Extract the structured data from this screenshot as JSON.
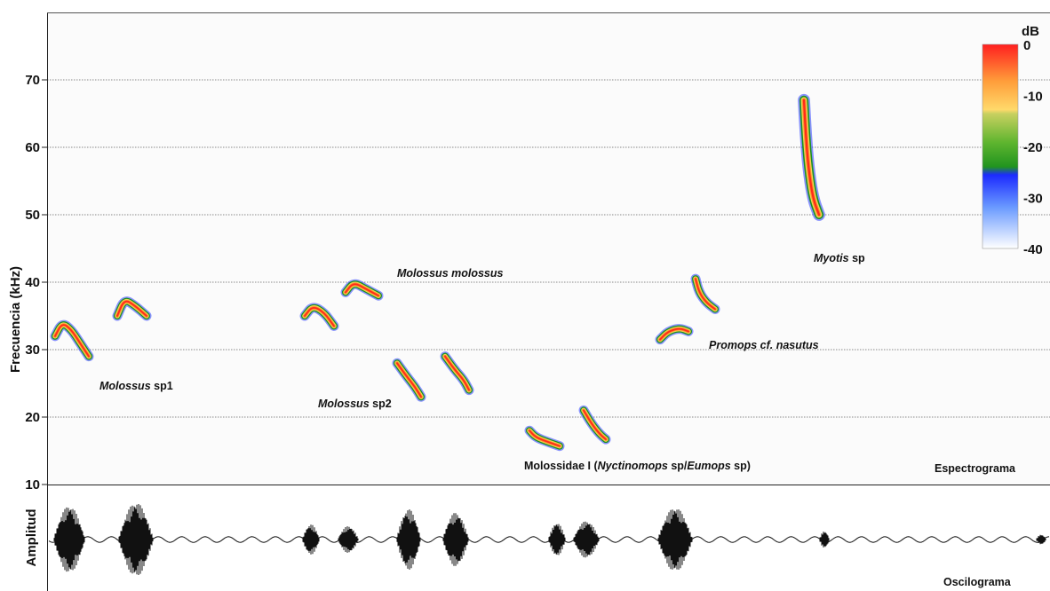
{
  "spectrogram": {
    "panel_label": "Espectrograma",
    "y_axis_title": "Frecuencia (kHz)",
    "y_ticks": [
      10,
      20,
      30,
      40,
      50,
      60,
      70
    ],
    "y_range": [
      10,
      80
    ],
    "gridlines_khz": [
      20,
      30,
      40,
      50,
      60,
      70
    ]
  },
  "oscillogram": {
    "panel_label": "Oscilograma",
    "y_axis_title": "Amplitud"
  },
  "colorbar": {
    "unit": "dB",
    "ticks": [
      "0",
      "-10",
      "-20",
      "-30",
      "-40"
    ],
    "colors": [
      "#ff1f1f",
      "#ff9d3a",
      "#ffd96a",
      "#93c72e",
      "#2aa52a",
      "#1c2bff",
      "#6b9bff",
      "#ffffff"
    ]
  },
  "labels": {
    "molossus_sp1": {
      "italic": "Molossus",
      "normal": " sp1"
    },
    "molossus_molossus": {
      "italic": "Molossus molossus"
    },
    "molossus_sp2": {
      "italic": "Molossus",
      "normal": " sp2"
    },
    "molossidae": {
      "p1": "Molossidae I (",
      "p2": "Nyctinomops",
      "p3": " sp/",
      "p4": "Eumops",
      "p5": " sp)"
    },
    "promops": {
      "italic": "Promops cf. nasutus"
    },
    "myotis": {
      "italic": "Myotis",
      "normal": " sp"
    }
  },
  "calls": [
    {
      "species": "Molossus sp1",
      "points_khz": [
        [
          62,
          32
        ],
        [
          70,
          34
        ],
        [
          80,
          33
        ],
        [
          90,
          31
        ],
        [
          100,
          29
        ]
      ]
    },
    {
      "species": "Molossus sp1",
      "points_khz": [
        [
          132,
          35
        ],
        [
          140,
          37.5
        ],
        [
          152,
          36.5
        ],
        [
          165,
          35
        ]
      ]
    },
    {
      "species": "Molossus sp2",
      "points_khz": [
        [
          343,
          35
        ],
        [
          352,
          36.5
        ],
        [
          365,
          35.5
        ],
        [
          376,
          33.5
        ]
      ]
    },
    {
      "species": "Molossus molossus",
      "points_khz": [
        [
          389,
          38.5
        ],
        [
          398,
          40
        ],
        [
          412,
          39
        ],
        [
          426,
          38
        ]
      ]
    },
    {
      "species": "Molossus sp2",
      "points_khz": [
        [
          447,
          28
        ],
        [
          458,
          26
        ],
        [
          467,
          24.5
        ],
        [
          474,
          23
        ]
      ]
    },
    {
      "species": "Molossus sp2",
      "points_khz": [
        [
          501,
          29
        ],
        [
          512,
          27
        ],
        [
          522,
          25.5
        ],
        [
          528,
          24
        ]
      ]
    },
    {
      "species": "Molossidae I",
      "points_khz": [
        [
          596,
          18
        ],
        [
          603,
          17
        ],
        [
          617,
          16.3
        ],
        [
          630,
          15.7
        ]
      ]
    },
    {
      "species": "Molossidae I",
      "points_khz": [
        [
          657,
          21
        ],
        [
          666,
          19
        ],
        [
          675,
          17.5
        ],
        [
          682,
          16.7
        ]
      ]
    },
    {
      "species": "Promops cf. nasutus",
      "points_khz": [
        [
          743,
          31.5
        ],
        [
          752,
          32.7
        ],
        [
          765,
          33.2
        ],
        [
          775,
          32.7
        ]
      ]
    },
    {
      "species": "Promops cf. nasutus",
      "points_khz": [
        [
          783,
          40.5
        ],
        [
          787,
          38.5
        ],
        [
          795,
          37
        ],
        [
          805,
          36
        ]
      ]
    },
    {
      "species": "Myotis sp",
      "points_khz": [
        [
          905,
          67
        ],
        [
          907,
          62
        ],
        [
          910,
          57
        ],
        [
          915,
          52.5
        ],
        [
          922,
          50
        ]
      ]
    }
  ],
  "oscillogram_bursts": [
    {
      "center": 78,
      "width": 36,
      "amplitude": 1.0
    },
    {
      "center": 153,
      "width": 40,
      "amplitude": 1.1
    },
    {
      "center": 350,
      "width": 20,
      "amplitude": 0.45
    },
    {
      "center": 392,
      "width": 24,
      "amplitude": 0.4
    },
    {
      "center": 460,
      "width": 28,
      "amplitude": 0.9
    },
    {
      "center": 513,
      "width": 30,
      "amplitude": 0.8
    },
    {
      "center": 627,
      "width": 20,
      "amplitude": 0.5
    },
    {
      "center": 660,
      "width": 30,
      "amplitude": 0.55
    },
    {
      "center": 760,
      "width": 40,
      "amplitude": 0.95
    },
    {
      "center": 928,
      "width": 12,
      "amplitude": 0.25
    },
    {
      "center": 1172,
      "width": 12,
      "amplitude": 0.15
    }
  ]
}
